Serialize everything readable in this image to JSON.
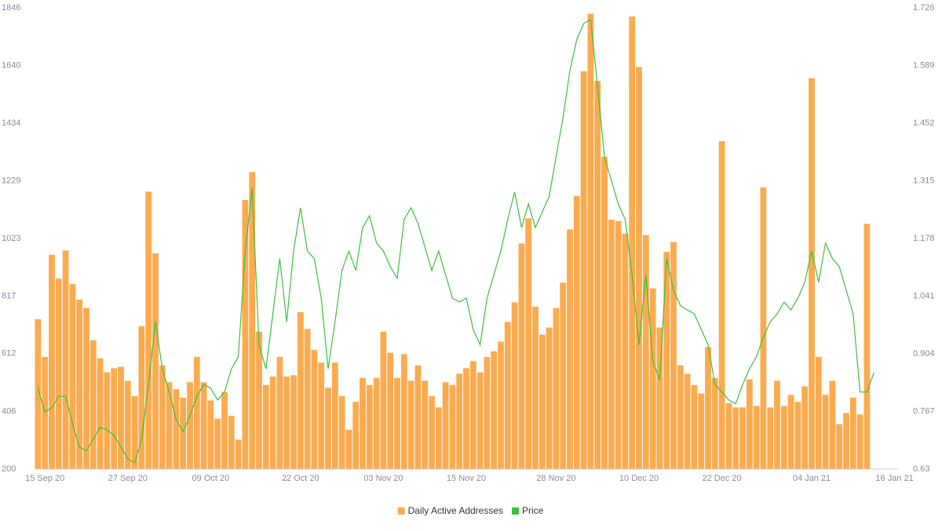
{
  "chart_data": {
    "type": "bar",
    "categories": [
      null,
      "15 Sep 20",
      null,
      null,
      null,
      null,
      null,
      null,
      null,
      null,
      null,
      null,
      null,
      "27 Sep 20",
      null,
      null,
      null,
      null,
      null,
      null,
      null,
      null,
      null,
      null,
      null,
      "09 Oct 20",
      null,
      null,
      null,
      null,
      null,
      null,
      null,
      null,
      null,
      null,
      null,
      null,
      "22 Oct 20",
      null,
      null,
      null,
      null,
      null,
      null,
      null,
      null,
      null,
      null,
      null,
      "03 Nov 20",
      null,
      null,
      null,
      null,
      null,
      null,
      null,
      null,
      null,
      null,
      null,
      "15 Nov 20",
      null,
      null,
      null,
      null,
      null,
      null,
      null,
      null,
      null,
      null,
      null,
      null,
      "28 Nov 20",
      null,
      null,
      null,
      null,
      null,
      null,
      null,
      null,
      null,
      null,
      null,
      "10 Dec 20",
      null,
      null,
      null,
      null,
      null,
      null,
      null,
      null,
      null,
      null,
      null,
      "22 Dec 20",
      null,
      null,
      null,
      null,
      null,
      null,
      null,
      null,
      null,
      null,
      null,
      null,
      "04 Jan 21",
      null,
      null,
      null,
      null,
      null,
      null,
      null,
      null,
      null,
      null,
      null,
      "16 Jan 21"
    ],
    "series": [
      {
        "name": "Daily Active Addresses",
        "type": "bar",
        "color": "#fbab4f",
        "values": [
          735,
          600,
          965,
          880,
          980,
          860,
          805,
          775,
          660,
          595,
          545,
          560,
          565,
          515,
          460,
          710,
          1190,
          970,
          570,
          510,
          485,
          455,
          510,
          600,
          510,
          445,
          380,
          475,
          390,
          305,
          1160,
          1260,
          690,
          500,
          530,
          600,
          530,
          535,
          760,
          700,
          625,
          580,
          490,
          580,
          460,
          340,
          440,
          525,
          500,
          525,
          690,
          615,
          525,
          610,
          515,
          570,
          515,
          460,
          420,
          510,
          500,
          540,
          560,
          585,
          545,
          600,
          620,
          655,
          725,
          795,
          1005,
          1095,
          780,
          680,
          705,
          775,
          865,
          1055,
          1175,
          1620,
          1825,
          1585,
          1315,
          1090,
          1085,
          1040,
          1815,
          1635,
          1035,
          845,
          705,
          975,
          1010,
          570,
          540,
          500,
          470,
          635,
          525,
          1370,
          435,
          420,
          420,
          520,
          425,
          1205,
          420,
          515,
          425,
          465,
          440,
          495,
          1595,
          600,
          465,
          515,
          360,
          400,
          455,
          395,
          1075,
          null,
          null,
          null,
          null
        ]
      },
      {
        "name": "Price",
        "type": "line",
        "axis": "y2",
        "color": "#3cc03c",
        "values": [
          0.822,
          0.766,
          0.775,
          0.803,
          0.803,
          0.738,
          0.682,
          0.673,
          0.701,
          0.729,
          0.723,
          0.71,
          0.682,
          0.654,
          0.645,
          0.701,
          0.831,
          0.98,
          0.868,
          0.813,
          0.747,
          0.719,
          0.757,
          0.803,
          0.831,
          0.822,
          0.794,
          0.813,
          0.868,
          0.897,
          1.148,
          1.297,
          0.925,
          0.868,
          0.999,
          1.13,
          0.98,
          1.148,
          1.251,
          1.148,
          1.13,
          1.036,
          0.868,
          0.98,
          1.102,
          1.148,
          1.102,
          1.204,
          1.232,
          1.167,
          1.148,
          1.111,
          1.083,
          1.223,
          1.251,
          1.214,
          1.158,
          1.102,
          1.148,
          1.092,
          1.036,
          1.027,
          1.036,
          0.962,
          0.925,
          1.036,
          1.092,
          1.148,
          1.223,
          1.288,
          1.204,
          1.26,
          1.204,
          1.241,
          1.278,
          1.372,
          1.465,
          1.577,
          1.651,
          1.689,
          1.698,
          1.54,
          1.372,
          1.316,
          1.26,
          1.223,
          1.092,
          0.925,
          1.092,
          0.887,
          0.841,
          1.13,
          1.055,
          1.018,
          1.008,
          0.999,
          0.962,
          0.925,
          0.831,
          0.813,
          0.794,
          0.785,
          0.831,
          0.868,
          0.897,
          0.943,
          0.98,
          0.999,
          1.027,
          1.008,
          1.036,
          1.074,
          1.148,
          1.074,
          1.167,
          1.13,
          1.111,
          1.055,
          0.999,
          0.813,
          0.813,
          0.859,
          null,
          null,
          null
        ]
      }
    ],
    "ylim": [
      200,
      1846
    ],
    "yticks": [
      200,
      406,
      612,
      817,
      1023,
      1229,
      1434,
      1640,
      1846
    ],
    "y2lim": [
      0.63,
      1.726
    ],
    "y2ticks": [
      0.63,
      0.767,
      0.904,
      1.041,
      1.178,
      1.315,
      1.452,
      1.589,
      1.726
    ],
    "grid": false,
    "legend": "bottom"
  }
}
